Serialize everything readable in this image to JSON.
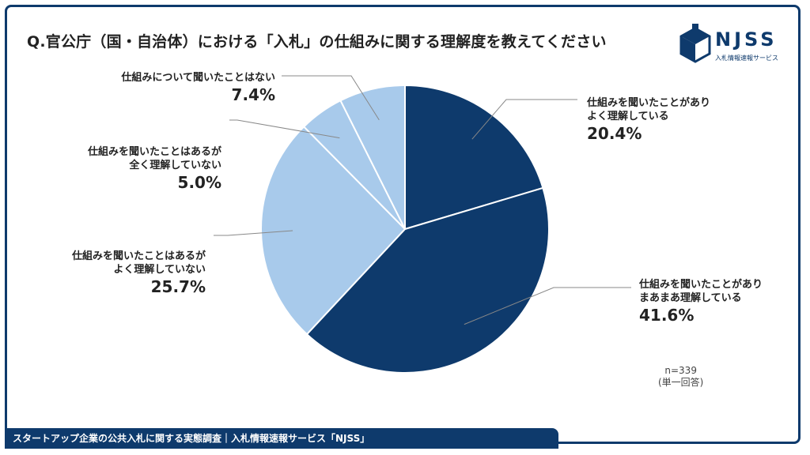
{
  "title": "Q.官公庁（国・自治体）における「入札」の仕組みに関する理解度を教えてください",
  "logo": {
    "name": "NJSS",
    "subtitle": "入札情報速報サービス"
  },
  "sample_note": {
    "n": "n=339",
    "type": "(単一回答)"
  },
  "footer": "スタートアップ企業の公共入札に関する実態調査｜入札情報速報サービス「NJSS」",
  "colors": {
    "dark": "#0e3a6c",
    "light": "#a8caeb",
    "frame": "#0e3a6c"
  },
  "chart_data": {
    "type": "pie",
    "start_angle_deg": 0,
    "direction": "clockwise",
    "slices": [
      {
        "line1": "仕組みを聞いたことがあり",
        "line2": "よく理解している",
        "value": 20.4,
        "pct": "20.4%",
        "color": "#0e3a6c"
      },
      {
        "line1": "仕組みを聞いたことがあり",
        "line2": "まあまあ理解している",
        "value": 41.6,
        "pct": "41.6%",
        "color": "#0e3a6c"
      },
      {
        "line1": "仕組みを聞いたことはあるが",
        "line2": "よく理解していない",
        "value": 25.7,
        "pct": "25.7%",
        "color": "#a8caeb"
      },
      {
        "line1": "仕組みを聞いたことはあるが",
        "line2": "全く理解していない",
        "value": 5.0,
        "pct": "5.0%",
        "color": "#a8caeb"
      },
      {
        "line1": "仕組みについて聞いたことはない",
        "line2": "",
        "value": 7.4,
        "pct": "7.4%",
        "color": "#a8caeb"
      }
    ]
  }
}
